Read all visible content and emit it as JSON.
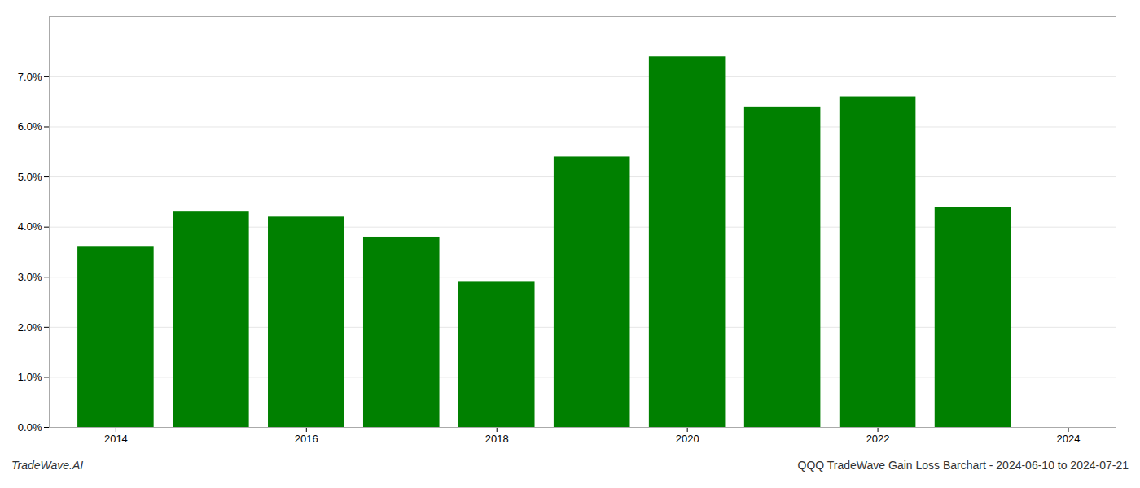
{
  "chart_data": {
    "type": "bar",
    "x": [
      2014,
      2015,
      2016,
      2017,
      2018,
      2019,
      2020,
      2021,
      2022,
      2023
    ],
    "values": [
      0.036,
      0.043,
      0.042,
      0.038,
      0.029,
      0.054,
      0.074,
      0.064,
      0.066,
      0.044
    ],
    "color": "#008000",
    "xlim": [
      2013.3,
      2024.5
    ],
    "xticks": [
      2014,
      2016,
      2018,
      2020,
      2022,
      2024
    ],
    "ylim": [
      0,
      0.082
    ],
    "yticks": [
      {
        "value": 0.0,
        "label": "0.0%"
      },
      {
        "value": 0.01,
        "label": "1.0%"
      },
      {
        "value": 0.02,
        "label": "2.0%"
      },
      {
        "value": 0.03,
        "label": "3.0%"
      },
      {
        "value": 0.04,
        "label": "4.0%"
      },
      {
        "value": 0.05,
        "label": "5.0%"
      },
      {
        "value": 0.06,
        "label": "6.0%"
      },
      {
        "value": 0.07,
        "label": "7.0%"
      }
    ],
    "grid": true,
    "annotations": [
      "TradeWave.AI",
      "QQQ TradeWave Gain Loss Barchart - 2024-06-10 to 2024-07-21"
    ]
  }
}
